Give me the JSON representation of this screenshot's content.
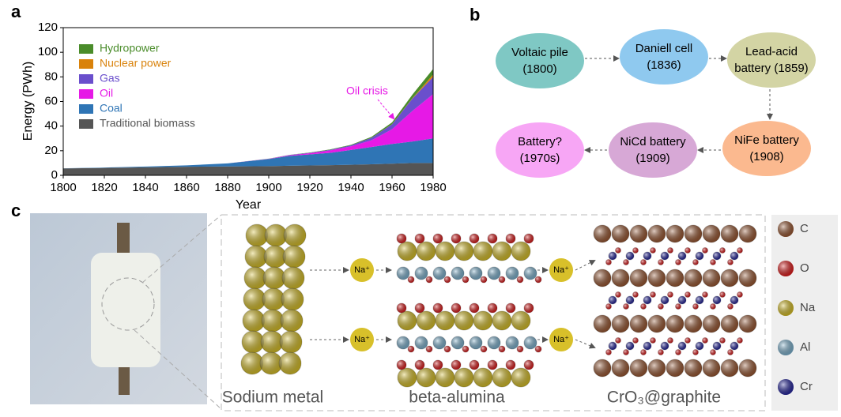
{
  "panels": {
    "a": "a",
    "b": "b",
    "c": "c"
  },
  "chart_data": {
    "type": "stacked-area",
    "xlabel": "Year",
    "ylabel": "Energy  (PWh)",
    "x": [
      1800,
      1820,
      1840,
      1860,
      1880,
      1900,
      1910,
      1920,
      1930,
      1940,
      1950,
      1960,
      1970,
      1980
    ],
    "series": [
      {
        "name": "Traditional biomass",
        "color": "#555555",
        "values": [
          5.6,
          6,
          6.5,
          7,
          7.2,
          7.5,
          7.8,
          8,
          8.3,
          8.6,
          9,
          9.5,
          10,
          10
        ]
      },
      {
        "name": "Coal",
        "color": "#2f75b5",
        "values": [
          0.1,
          0.3,
          0.6,
          1.1,
          2.5,
          5.7,
          8,
          9,
          10,
          12,
          14,
          16,
          17.5,
          20
        ]
      },
      {
        "name": "Oil",
        "color": "#e619e6",
        "values": [
          0,
          0,
          0,
          0,
          0,
          0.2,
          0.5,
          1,
          2,
          3,
          5.5,
          12,
          25,
          36
        ]
      },
      {
        "name": "Gas",
        "color": "#6a4fcc",
        "values": [
          0,
          0,
          0,
          0,
          0,
          0.1,
          0.2,
          0.3,
          0.5,
          0.8,
          2,
          4,
          10,
          14
        ]
      },
      {
        "name": "Nuclear power",
        "color": "#d9820b",
        "values": [
          0,
          0,
          0,
          0,
          0,
          0,
          0,
          0,
          0,
          0,
          0,
          0.02,
          0.3,
          2
        ]
      },
      {
        "name": "Hydropower",
        "color": "#4a8c2a",
        "values": [
          0,
          0,
          0,
          0,
          0,
          0.05,
          0.1,
          0.2,
          0.3,
          0.4,
          0.8,
          1.5,
          3,
          4.5
        ]
      }
    ],
    "xlim": [
      1800,
      1980
    ],
    "xticks": [
      1800,
      1820,
      1840,
      1860,
      1880,
      1900,
      1920,
      1940,
      1960,
      1980
    ],
    "ylim": [
      0,
      120
    ],
    "yticks": [
      0,
      20,
      40,
      60,
      80,
      100,
      120
    ],
    "annotation": "Oil crisis",
    "annotation_color": "#e619e6",
    "legend": "upper left"
  },
  "diagram": {
    "nodes": [
      {
        "lines": [
          "Voltaic pile",
          "(1800)"
        ],
        "color": "#7fc8c4"
      },
      {
        "lines": [
          "Daniell cell",
          "(1836)"
        ],
        "color": "#8fc9ef"
      },
      {
        "lines": [
          "Lead-acid",
          "battery (1859)"
        ],
        "color": "#d3d4a4"
      },
      {
        "lines": [
          "NiFe battery",
          "(1908)"
        ],
        "color": "#fbb98f"
      },
      {
        "lines": [
          "NiCd battery",
          "(1909)"
        ],
        "color": "#d7a8d6"
      },
      {
        "lines": [
          "Battery?",
          "(1970s)"
        ],
        "color": "#f7a6f5"
      }
    ]
  },
  "illustration": {
    "ion": "Na⁺",
    "materials": [
      "Sodium metal",
      "beta-alumina",
      "CrO₃@graphite"
    ],
    "elements": [
      {
        "symbol": "C",
        "color": "#9b5a35"
      },
      {
        "symbol": "O",
        "color": "#e02020"
      },
      {
        "symbol": "Na",
        "color": "#d8c02a"
      },
      {
        "symbol": "Al",
        "color": "#7fb3d0"
      },
      {
        "symbol": "Cr",
        "color": "#2a2aa0"
      }
    ]
  }
}
